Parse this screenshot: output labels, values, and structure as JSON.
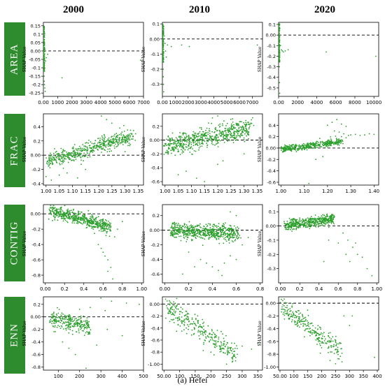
{
  "figure": {
    "column_headers": [
      "2000",
      "2010",
      "2020"
    ],
    "row_labels": [
      "AREA",
      "FRAC",
      "CONTIG",
      "ENN"
    ],
    "caption": "(a) Hefei",
    "y_axis_label": "SHAP Value",
    "point_color": "#2ca02c",
    "label_bg_color": "#2e8b2e"
  },
  "chart_data": [
    {
      "type": "scatter",
      "row": "AREA",
      "year": "2000",
      "ylabel": "SHAP Value",
      "zero_line": "dashed",
      "xlim": [
        0,
        7000
      ],
      "ylim": [
        -0.27,
        0.17
      ],
      "xticks": [
        0,
        1000,
        2000,
        3000,
        4000,
        5000,
        6000,
        7000
      ],
      "yticks": [
        0.15,
        0.1,
        0.05,
        0.0,
        -0.05,
        -0.1,
        -0.15,
        -0.2,
        -0.25
      ],
      "points": [
        [
          5,
          0.16
        ],
        [
          10,
          0.06
        ],
        [
          15,
          0.04
        ],
        [
          20,
          0.02
        ],
        [
          25,
          0.0
        ],
        [
          30,
          -0.02
        ],
        [
          35,
          -0.05
        ],
        [
          40,
          -0.08
        ],
        [
          45,
          -0.12
        ],
        [
          50,
          -0.15
        ],
        [
          60,
          -0.18
        ],
        [
          80,
          -0.2
        ],
        [
          100,
          -0.22
        ],
        [
          120,
          -0.24
        ],
        [
          60,
          0.05
        ],
        [
          70,
          -0.03
        ],
        [
          90,
          -0.1
        ],
        [
          110,
          0.01
        ],
        [
          150,
          -0.06
        ],
        [
          200,
          -0.04
        ],
        [
          300,
          -0.02
        ],
        [
          1300,
          -0.16
        ],
        [
          6800,
          -0.055
        ]
      ]
    },
    {
      "type": "scatter",
      "row": "AREA",
      "year": "2010",
      "ylabel": "SHAP Value",
      "zero_line": "dashed",
      "xlim": [
        0,
        7800
      ],
      "ylim": [
        -0.38,
        0.11
      ],
      "xticks": [
        0,
        1000,
        2000,
        3000,
        4000,
        5000,
        6000,
        7000
      ],
      "yticks": [
        0.1,
        0.0,
        -0.1,
        -0.2,
        -0.3
      ],
      "points": [
        [
          5,
          0.1
        ],
        [
          10,
          0.05
        ],
        [
          20,
          0.0
        ],
        [
          30,
          -0.05
        ],
        [
          40,
          -0.1
        ],
        [
          50,
          -0.15
        ],
        [
          60,
          -0.2
        ],
        [
          70,
          -0.25
        ],
        [
          80,
          -0.3
        ],
        [
          100,
          -0.35
        ],
        [
          150,
          0.02
        ],
        [
          200,
          -0.03
        ],
        [
          250,
          -0.08
        ],
        [
          300,
          -0.12
        ],
        [
          400,
          -0.04
        ],
        [
          700,
          -0.05
        ],
        [
          1500,
          -0.04
        ],
        [
          2100,
          -0.05
        ],
        [
          7400,
          -0.04
        ]
      ]
    },
    {
      "type": "scatter",
      "row": "AREA",
      "year": "2020",
      "ylabel": "SHAP Value",
      "zero_line": "dashed",
      "xlim": [
        0,
        10500
      ],
      "ylim": [
        -0.58,
        0.12
      ],
      "xticks": [
        0,
        2000,
        4000,
        6000,
        8000,
        10000
      ],
      "yticks": [
        0.1,
        0.0,
        -0.1,
        -0.2,
        -0.3,
        -0.4,
        -0.5
      ],
      "points": [
        [
          5,
          0.11
        ],
        [
          10,
          0.05
        ],
        [
          20,
          0.0
        ],
        [
          30,
          -0.05
        ],
        [
          40,
          -0.1
        ],
        [
          50,
          -0.15
        ],
        [
          60,
          -0.2
        ],
        [
          80,
          -0.3
        ],
        [
          100,
          -0.45
        ],
        [
          120,
          -0.55
        ],
        [
          200,
          -0.1
        ],
        [
          300,
          -0.14
        ],
        [
          400,
          -0.15
        ],
        [
          500,
          -0.16
        ],
        [
          700,
          -0.15
        ],
        [
          1000,
          -0.14
        ],
        [
          5000,
          -0.16
        ],
        [
          10200,
          -0.2
        ]
      ]
    },
    {
      "type": "scatter",
      "row": "FRAC",
      "year": "2000",
      "ylabel": "SHAP Value",
      "zero_line": "dashed",
      "xlim": [
        0.99,
        1.37
      ],
      "ylim": [
        -0.42,
        0.58
      ],
      "xticks": [
        1.0,
        1.05,
        1.1,
        1.15,
        1.2,
        1.25,
        1.3,
        1.35
      ],
      "yticks": [
        0.4,
        0.2,
        0.0,
        -0.2,
        -0.4
      ],
      "trend": {
        "x0": 1.0,
        "y0": -0.1,
        "x1": 1.33,
        "y1": 0.28,
        "spread": 0.09,
        "n": 520
      },
      "points": [
        [
          1.0,
          -0.3
        ],
        [
          1.02,
          -0.35
        ],
        [
          1.05,
          -0.28
        ],
        [
          1.08,
          -0.25
        ],
        [
          1.21,
          0.55
        ],
        [
          1.23,
          0.5
        ],
        [
          1.25,
          0.45
        ],
        [
          1.28,
          0.38
        ],
        [
          1.12,
          -0.32
        ],
        [
          1.15,
          -0.2
        ],
        [
          1.3,
          0.05
        ],
        [
          1.34,
          0.3
        ]
      ]
    },
    {
      "type": "scatter",
      "row": "FRAC",
      "year": "2010",
      "ylabel": "SHAP Value",
      "zero_line": "dashed",
      "xlim": [
        0.99,
        1.37
      ],
      "ylim": [
        -0.65,
        0.38
      ],
      "xticks": [
        1.0,
        1.05,
        1.1,
        1.15,
        1.2,
        1.25,
        1.3,
        1.35
      ],
      "yticks": [
        0.2,
        0.0,
        -0.2,
        -0.4,
        -0.6
      ],
      "trend": {
        "x0": 1.0,
        "y0": -0.1,
        "x1": 1.33,
        "y1": 0.18,
        "spread": 0.11,
        "n": 620
      },
      "points": [
        [
          1.05,
          -0.5
        ],
        [
          1.08,
          -0.45
        ],
        [
          1.12,
          -0.55
        ],
        [
          1.15,
          -0.6
        ],
        [
          1.2,
          -0.35
        ],
        [
          1.22,
          -0.3
        ],
        [
          1.18,
          0.32
        ],
        [
          1.2,
          0.35
        ],
        [
          1.25,
          0.3
        ],
        [
          1.3,
          -0.2
        ],
        [
          1.0,
          -0.05
        ],
        [
          1.02,
          0.0
        ]
      ]
    },
    {
      "type": "scatter",
      "row": "FRAC",
      "year": "2020",
      "ylabel": "SHAP Value",
      "zero_line": "dashed",
      "xlim": [
        0.99,
        1.42
      ],
      "ylim": [
        -0.65,
        0.6
      ],
      "xticks": [
        1.0,
        1.1,
        1.2,
        1.3,
        1.4
      ],
      "yticks": [
        0.4,
        0.2,
        0.0,
        -0.2,
        -0.4,
        -0.6
      ],
      "trend": {
        "x0": 1.0,
        "y0": -0.03,
        "x1": 1.26,
        "y1": 0.12,
        "spread": 0.05,
        "n": 420
      },
      "points": [
        [
          1.2,
          0.4
        ],
        [
          1.22,
          0.45
        ],
        [
          1.24,
          0.5
        ],
        [
          1.26,
          0.42
        ],
        [
          1.28,
          0.38
        ],
        [
          1.23,
          0.3
        ],
        [
          1.25,
          0.28
        ],
        [
          1.27,
          0.25
        ],
        [
          1.29,
          0.22
        ],
        [
          1.3,
          0.23
        ],
        [
          1.32,
          0.24
        ],
        [
          1.34,
          0.22
        ],
        [
          1.36,
          0.23
        ],
        [
          1.38,
          0.25
        ],
        [
          1.4,
          0.24
        ],
        [
          1.26,
          0.2
        ],
        [
          1.28,
          0.18
        ],
        [
          1.18,
          -0.15
        ],
        [
          1.15,
          -0.2
        ],
        [
          1.12,
          -0.62
        ],
        [
          1.2,
          0.02
        ],
        [
          1.25,
          0.05
        ]
      ]
    },
    {
      "type": "scatter",
      "row": "CONTIG",
      "year": "2000",
      "ylabel": "SHAP Value",
      "zero_line": "dashed",
      "xlim": [
        -0.02,
        1.02
      ],
      "ylim": [
        -0.9,
        0.12
      ],
      "xticks": [
        0.0,
        0.2,
        0.4,
        0.6,
        0.8,
        1.0
      ],
      "yticks": [
        0.0,
        -0.2,
        -0.4,
        -0.6,
        -0.8
      ],
      "trend": {
        "x0": 0.05,
        "y0": 0.04,
        "x1": 0.68,
        "y1": -0.18,
        "spread": 0.07,
        "n": 520
      },
      "points": [
        [
          0.6,
          -0.5
        ],
        [
          0.62,
          -0.55
        ],
        [
          0.65,
          -0.6
        ],
        [
          0.68,
          -0.7
        ],
        [
          0.7,
          -0.85
        ],
        [
          0.55,
          -0.4
        ],
        [
          0.58,
          -0.45
        ],
        [
          0.72,
          -0.3
        ],
        [
          0.75,
          -0.2
        ],
        [
          0.8,
          -0.1
        ],
        [
          0.65,
          -0.75
        ]
      ]
    },
    {
      "type": "scatter",
      "row": "CONTIG",
      "year": "2010",
      "ylabel": "SHAP Value",
      "zero_line": "dashed",
      "xlim": [
        -0.02,
        0.82
      ],
      "ylim": [
        -0.72,
        0.35
      ],
      "xticks": [
        0.0,
        0.2,
        0.4,
        0.6,
        0.8
      ],
      "yticks": [
        0.2,
        0.0,
        -0.2,
        -0.4,
        -0.6
      ],
      "trend": {
        "x0": 0.05,
        "y0": 0.0,
        "x1": 0.62,
        "y1": -0.05,
        "spread": 0.09,
        "n": 620
      },
      "points": [
        [
          0.3,
          -0.4
        ],
        [
          0.35,
          -0.45
        ],
        [
          0.4,
          -0.5
        ],
        [
          0.45,
          -0.55
        ],
        [
          0.5,
          -0.45
        ],
        [
          0.55,
          -0.35
        ],
        [
          0.6,
          -0.4
        ],
        [
          0.2,
          -0.3
        ],
        [
          0.25,
          -0.5
        ],
        [
          0.65,
          -0.2
        ],
        [
          0.7,
          -0.1
        ],
        [
          0.15,
          -0.6
        ],
        [
          0.48,
          -0.62
        ],
        [
          0.55,
          0.25
        ],
        [
          0.6,
          0.2
        ]
      ]
    },
    {
      "type": "scatter",
      "row": "CONTIG",
      "year": "2020",
      "ylabel": "SHAP Value",
      "zero_line": "dashed",
      "xlim": [
        -0.02,
        1.02
      ],
      "ylim": [
        -0.4,
        0.15
      ],
      "xticks": [
        0.0,
        0.2,
        0.4,
        0.6,
        0.8,
        1.0
      ],
      "yticks": [
        0.1,
        0.0,
        -0.1,
        -0.2,
        -0.3
      ],
      "trend": {
        "x0": 0.05,
        "y0": 0.0,
        "x1": 0.55,
        "y1": 0.05,
        "spread": 0.03,
        "n": 480
      },
      "points": [
        [
          0.65,
          -0.05
        ],
        [
          0.7,
          -0.1
        ],
        [
          0.75,
          -0.15
        ],
        [
          0.8,
          -0.2
        ],
        [
          0.85,
          -0.22
        ],
        [
          0.9,
          -0.3
        ],
        [
          0.95,
          -0.35
        ],
        [
          0.6,
          -0.12
        ],
        [
          0.68,
          -0.2
        ],
        [
          0.72,
          -0.25
        ],
        [
          0.78,
          -0.12
        ],
        [
          0.5,
          -0.1
        ],
        [
          0.45,
          -0.25
        ]
      ]
    },
    {
      "type": "scatter",
      "row": "ENN",
      "year": "2000",
      "ylabel": "SHAP Value",
      "zero_line": "dashed",
      "xlim": [
        30,
        500
      ],
      "ylim": [
        -0.85,
        0.32
      ],
      "xticks": [
        100,
        200,
        300,
        400,
        500
      ],
      "yticks": [
        0.2,
        0.0,
        -0.2,
        -0.4,
        -0.6,
        -0.8
      ],
      "trend": {
        "x0": 60,
        "y0": -0.05,
        "x1": 250,
        "y1": -0.15,
        "spread": 0.12,
        "n": 260
      },
      "points": [
        [
          300,
          0.3
        ],
        [
          350,
          0.25
        ],
        [
          420,
          0.22
        ],
        [
          480,
          0.2
        ],
        [
          320,
          0.1
        ],
        [
          250,
          0.15
        ],
        [
          200,
          0.12
        ],
        [
          150,
          -0.5
        ],
        [
          180,
          -0.6
        ],
        [
          230,
          -0.82
        ],
        [
          280,
          -0.45
        ],
        [
          330,
          -0.2
        ],
        [
          120,
          -0.4
        ],
        [
          400,
          -0.3
        ]
      ]
    },
    {
      "type": "scatter",
      "row": "ENN",
      "year": "2010",
      "ylabel": "SHAP Value",
      "zero_line": "dashed",
      "xlim": [
        45,
        365
      ],
      "ylim": [
        -1.1,
        0.12
      ],
      "xticks": [
        50,
        100,
        150,
        200,
        250,
        300,
        350
      ],
      "yticks": [
        0.0,
        -0.2,
        -0.4,
        -0.6,
        -0.8,
        -1.0
      ],
      "trend": {
        "x0": 60,
        "y0": -0.05,
        "x1": 280,
        "y1": -0.85,
        "spread": 0.15,
        "n": 300
      },
      "points": [
        [
          55,
          0.08
        ],
        [
          60,
          0.05
        ],
        [
          70,
          0.03
        ],
        [
          300,
          -0.7
        ],
        [
          330,
          -0.75
        ],
        [
          350,
          -0.65
        ],
        [
          250,
          -1.0
        ],
        [
          270,
          -0.95
        ],
        [
          200,
          -0.8
        ],
        [
          180,
          -0.6
        ]
      ]
    },
    {
      "type": "scatter",
      "row": "ENN",
      "year": "2020",
      "ylabel": "SHAP Value",
      "zero_line": "dashed",
      "xlim": [
        45,
        405
      ],
      "ylim": [
        -1.05,
        0.1
      ],
      "xticks": [
        50,
        100,
        150,
        200,
        250,
        300,
        350,
        400
      ],
      "yticks": [
        0.0,
        -0.2,
        -0.4,
        -0.6,
        -0.8,
        -1.0
      ],
      "trend": {
        "x0": 55,
        "y0": -0.05,
        "x1": 270,
        "y1": -0.75,
        "spread": 0.13,
        "n": 260
      },
      "points": [
        [
          55,
          0.06
        ],
        [
          60,
          0.04
        ],
        [
          300,
          -0.35
        ],
        [
          310,
          -0.2
        ],
        [
          280,
          -0.2
        ],
        [
          230,
          -0.9
        ],
        [
          250,
          -0.95
        ],
        [
          390,
          -0.85
        ],
        [
          200,
          -0.55
        ],
        [
          150,
          -0.4
        ]
      ]
    }
  ]
}
